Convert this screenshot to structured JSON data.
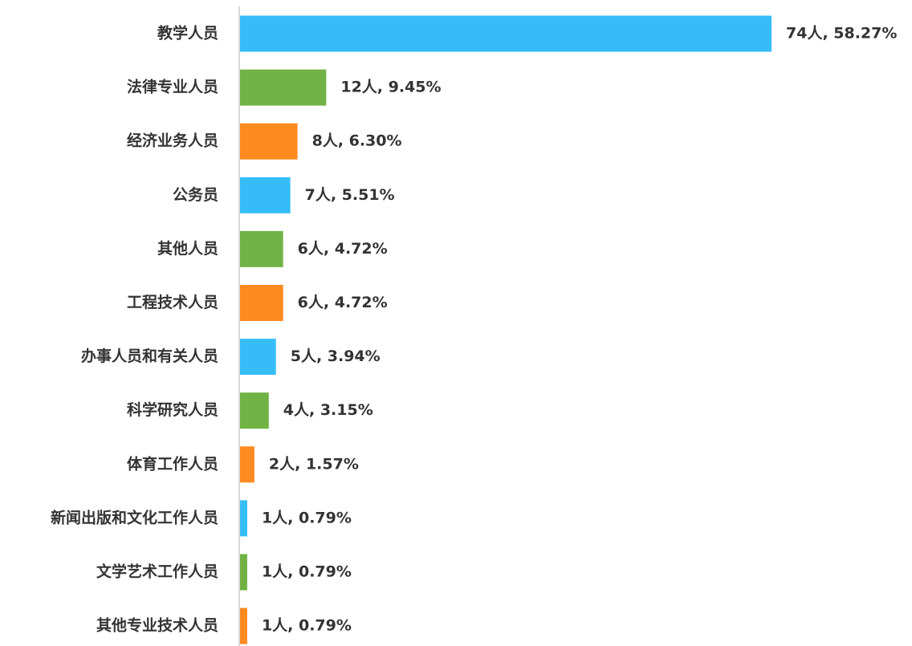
{
  "chart_data": {
    "type": "bar",
    "orientation": "horizontal",
    "categories": [
      "教学人员",
      "法律专业人员",
      "经济业务人员",
      "公务员",
      "其他人员",
      "工程技术人员",
      "办事人员和有关人员",
      "科学研究人员",
      "体育工作人员",
      "新闻出版和文化工作人员",
      "文学艺术工作人员",
      "其他专业技术人员"
    ],
    "values": [
      74,
      12,
      8,
      7,
      6,
      6,
      5,
      4,
      2,
      1,
      1,
      1
    ],
    "value_labels": [
      "74人, 58.27%",
      "12人, 9.45%",
      "8人, 6.30%",
      "7人, 5.51%",
      "6人, 4.72%",
      "6人, 4.72%",
      "5人, 3.94%",
      "4人, 3.15%",
      "2人, 1.57%",
      "1人, 0.79%",
      "1人, 0.79%",
      "1人, 0.79%"
    ],
    "colors": [
      "#36bdf8",
      "#70b244",
      "#fd8a1f",
      "#36bdf8",
      "#70b244",
      "#fd8a1f",
      "#36bdf8",
      "#70b244",
      "#fd8a1f",
      "#36bdf8",
      "#70b244",
      "#fd8a1f"
    ]
  }
}
